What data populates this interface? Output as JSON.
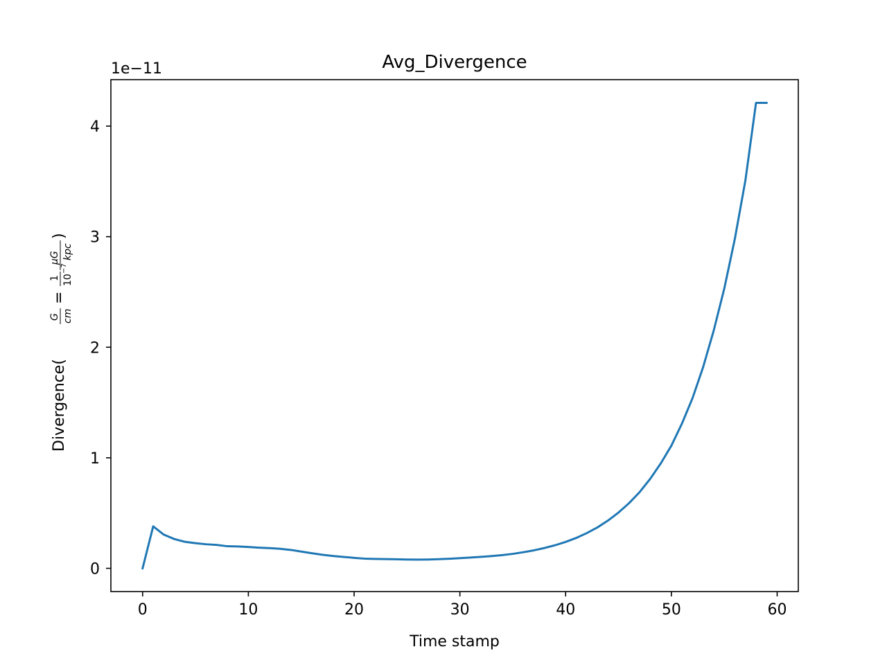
{
  "chart_data": {
    "type": "line",
    "title": "Avg_Divergence",
    "xlabel": "Time stamp",
    "ylabel": {
      "prefix": "Divergence(",
      "frac1_num": "G",
      "frac1_den": "cm",
      "equals": "=",
      "frac2_num": "1",
      "frac2_den": "10",
      "frac2_exp": "−7",
      "frac2_den_unit": "kpc",
      "frac3_num": "μG",
      "suffix": ")"
    },
    "offset_text": "1e−11",
    "xlim": [
      -3,
      62
    ],
    "ylim": [
      -0.21,
      4.42
    ],
    "xticks": [
      0,
      10,
      20,
      30,
      40,
      50,
      60
    ],
    "xtick_labels": [
      "0",
      "10",
      "20",
      "30",
      "40",
      "50",
      "60"
    ],
    "yticks": [
      0,
      1,
      2,
      3,
      4
    ],
    "ytick_labels": [
      "0",
      "1",
      "2",
      "3",
      "4"
    ],
    "line_color": "#1f77b4",
    "series": [
      {
        "x": [
          0,
          1,
          2,
          3,
          4,
          5,
          6,
          7,
          8,
          9,
          10,
          11,
          12,
          13,
          14,
          15,
          16,
          17,
          18,
          19,
          20,
          21,
          22,
          23,
          24,
          25,
          26,
          27,
          28,
          29,
          30,
          31,
          32,
          33,
          34,
          35,
          36,
          37,
          38,
          39,
          40,
          41,
          42,
          43,
          44,
          45,
          46,
          47,
          48,
          49,
          50,
          51,
          52,
          53,
          54,
          55,
          56,
          57,
          58,
          59
        ],
        "values": [
          0.0,
          0.38,
          0.305,
          0.265,
          0.24,
          0.228,
          0.218,
          0.212,
          0.2,
          0.198,
          0.193,
          0.187,
          0.183,
          0.177,
          0.167,
          0.152,
          0.137,
          0.123,
          0.112,
          0.103,
          0.095,
          0.088,
          0.085,
          0.084,
          0.082,
          0.08,
          0.079,
          0.08,
          0.083,
          0.087,
          0.092,
          0.098,
          0.104,
          0.111,
          0.12,
          0.131,
          0.146,
          0.163,
          0.184,
          0.209,
          0.239,
          0.275,
          0.319,
          0.37,
          0.432,
          0.505,
          0.59,
          0.69,
          0.81,
          0.95,
          1.11,
          1.31,
          1.54,
          1.82,
          2.15,
          2.53,
          2.98,
          3.51,
          4.21,
          4.21
        ]
      }
    ]
  }
}
